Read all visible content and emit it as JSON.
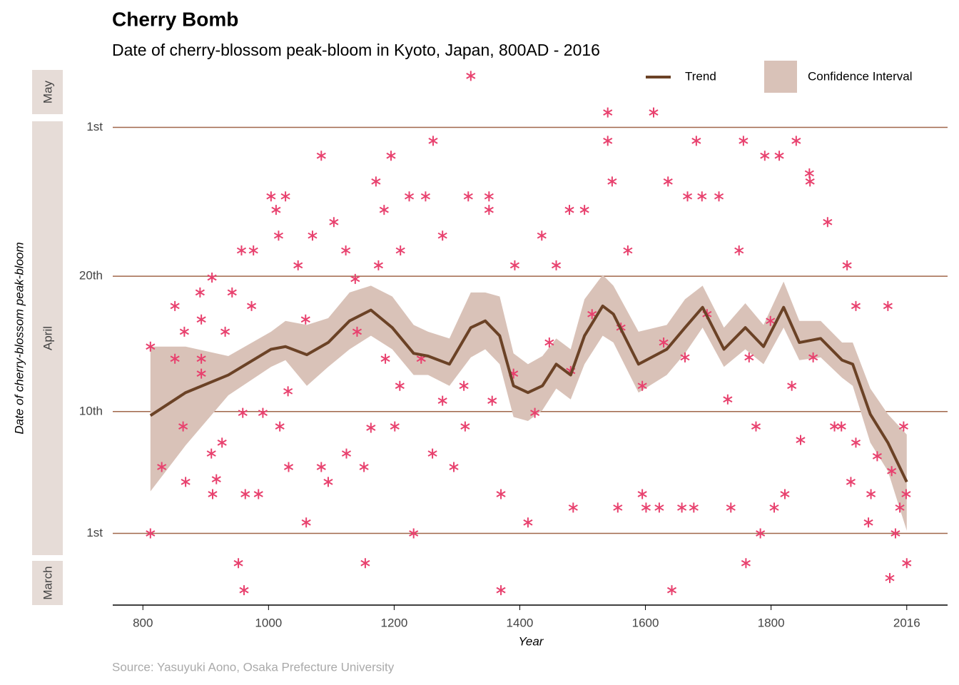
{
  "chart_data": {
    "type": "scatter",
    "title": "Cherry Bomb",
    "subtitle": "Date of cherry-blossom peak-bloom in Kyoto, Japan, 800AD - 2016",
    "x_label": "Year",
    "y_label": "Date of cherry-blossom peak-bloom",
    "source": "Source: Yasuyuki Aono, Osaka Prefecture University",
    "facets": [
      "May",
      "April",
      "March"
    ],
    "color": "#e8416e",
    "grid_color": "#a0674a",
    "x": [
      812,
      812,
      830,
      851,
      851,
      866,
      864,
      868,
      891,
      893,
      893,
      893,
      910,
      909,
      911,
      917,
      926,
      931,
      942,
      952,
      961,
      957,
      959,
      963,
      973,
      976,
      984,
      991,
      1004,
      1012,
      1016,
      1018,
      1027,
      1031,
      1032,
      1047,
      1060,
      1059,
      1070,
      1084,
      1084,
      1095,
      1104,
      1123,
      1124,
      1138,
      1154,
      1152,
      1163,
      1171,
      1175,
      1184,
      1195,
      1201,
      1210,
      1224,
      1231,
      1250,
      1262,
      1261,
      1277,
      1295,
      1313,
      1318,
      1322,
      1351,
      1351,
      1370,
      1370,
      1392,
      1413,
      1435,
      1458,
      1485,
      1479,
      1503,
      1540,
      1540,
      1547,
      1556,
      1572,
      1595,
      1601,
      1613,
      1622,
      1636,
      1642,
      1658,
      1667,
      1677,
      1681,
      1690,
      1717,
      1736,
      1749,
      1756,
      1760,
      1776,
      1783,
      1790,
      1805,
      1813,
      1822,
      1840,
      1847,
      1861,
      1862,
      1890,
      1912,
      1921,
      1927,
      1935,
      1955,
      1959,
      1986,
      1989,
      1998,
      2005,
      2011,
      2016,
      2015,
      1141,
      1186,
      1209,
      1243,
      1277,
      1311,
      1356,
      1390,
      1424,
      1447,
      1481,
      1515,
      1561,
      1595,
      1629,
      1663,
      1698,
      1731,
      1765,
      1799,
      1833,
      1867,
      1901,
      1935,
      1969,
      1992
    ],
    "values": [
      91,
      104.8,
      95.9,
      107.8,
      103.9,
      105.9,
      98.9,
      94.8,
      108.8,
      106.8,
      103.9,
      102.8,
      109.9,
      96.9,
      93.9,
      95,
      97.7,
      105.9,
      108.8,
      88.8,
      86.8,
      111.9,
      99.9,
      93.9,
      107.8,
      111.9,
      93.9,
      99.9,
      115.9,
      114.9,
      113,
      98.9,
      115.9,
      101.5,
      95.9,
      110.8,
      91.8,
      106.8,
      113,
      118.9,
      95.9,
      94.8,
      114,
      111.9,
      96.9,
      109.8,
      88.8,
      95.9,
      98.8,
      117,
      110.8,
      114.9,
      118.9,
      98.9,
      111.9,
      115.9,
      91,
      115.9,
      120,
      96.9,
      113,
      95.9,
      98.9,
      115.9,
      124.8,
      115.9,
      114.9,
      93.9,
      86.8,
      110.8,
      91.8,
      113,
      110.8,
      92.9,
      114.9,
      114.9,
      122.1,
      120,
      117,
      92.9,
      111.9,
      93.9,
      92.9,
      122.1,
      92.9,
      117,
      86.8,
      92.9,
      115.9,
      92.9,
      120,
      115.9,
      115.9,
      92.9,
      111.9,
      120,
      88.8,
      98.9,
      91,
      118.9,
      92.9,
      118.9,
      93.9,
      120,
      97.9,
      117.6,
      117,
      114,
      98.9,
      110.8,
      94.8,
      107.8,
      91.8,
      93.9,
      107.8,
      87.7,
      91,
      92.9,
      98.9,
      88.8,
      93.9,
      105.9,
      103.9,
      101.9,
      103.9,
      100.8,
      101.9,
      100.8,
      102.8,
      99.9,
      105.1,
      103,
      107.2,
      106.2,
      101.9,
      105.1,
      104,
      107.2,
      100.9,
      104,
      106.7,
      101.9,
      104,
      98.9,
      97.7,
      96.7,
      95.6
    ],
    "trend": {
      "name": "Trend",
      "color": "#6b4226",
      "x": [
        812,
        868,
        936,
        1004,
        1027,
        1061,
        1095,
        1129,
        1163,
        1197,
        1231,
        1254,
        1288,
        1322,
        1345,
        1368,
        1390,
        1413,
        1436,
        1458,
        1481,
        1503,
        1532,
        1549,
        1589,
        1634,
        1663,
        1691,
        1725,
        1759,
        1788,
        1820,
        1845,
        1879,
        1913,
        1930,
        1958,
        1986,
        2016
      ],
      "values": [
        99.7,
        101.4,
        102.7,
        104.6,
        104.8,
        104.2,
        105.1,
        106.7,
        107.5,
        106.2,
        104.3,
        104.1,
        103.5,
        106.2,
        106.7,
        105.6,
        101.9,
        101.4,
        101.9,
        103.5,
        102.7,
        105.6,
        107.8,
        107.2,
        103.5,
        104.6,
        106.2,
        107.7,
        104.6,
        106.2,
        104.8,
        107.7,
        105.1,
        105.4,
        103.8,
        103.5,
        99.8,
        97.7,
        94.8
      ]
    },
    "ci": {
      "name": "Confidence Interval",
      "color": "#d9c2b8",
      "lower": [
        94.1,
        97.5,
        101.2,
        103.3,
        103.8,
        101.9,
        103.3,
        104.6,
        105.6,
        104.6,
        102.7,
        102.7,
        101.9,
        104,
        104.6,
        103.5,
        99.6,
        99.3,
        100.1,
        101.7,
        100.9,
        103.5,
        105.6,
        105.1,
        101.4,
        102.7,
        104.3,
        106.2,
        103.3,
        104.6,
        103.5,
        106.2,
        103.8,
        104,
        102.5,
        101.9,
        97.7,
        95.6,
        91.2
      ],
      "upper": [
        104.8,
        104.8,
        104.1,
        105.9,
        106.7,
        106.4,
        106.9,
        108.8,
        109.3,
        108.5,
        106.4,
        105.9,
        105.4,
        108.8,
        108.8,
        108.5,
        104.3,
        103.5,
        104.1,
        105.4,
        104.6,
        108.3,
        110.1,
        109.3,
        105.9,
        106.4,
        108.3,
        109.3,
        106.2,
        108,
        106.4,
        109.6,
        106.7,
        106.7,
        105.1,
        105.1,
        101.7,
        99.8,
        98.3
      ]
    },
    "xlim": [
      752,
      2081
    ],
    "xticks": [
      800,
      1000,
      1200,
      1400,
      1600,
      1800,
      2016
    ],
    "ylim": [
      85.7,
      125.4
    ],
    "yticks": [
      {
        "value": 91,
        "label": "1st"
      },
      {
        "value": 100,
        "label": "10th"
      },
      {
        "value": 110,
        "label": "20th"
      },
      {
        "value": 121,
        "label": "1st"
      }
    ],
    "grid": true
  }
}
